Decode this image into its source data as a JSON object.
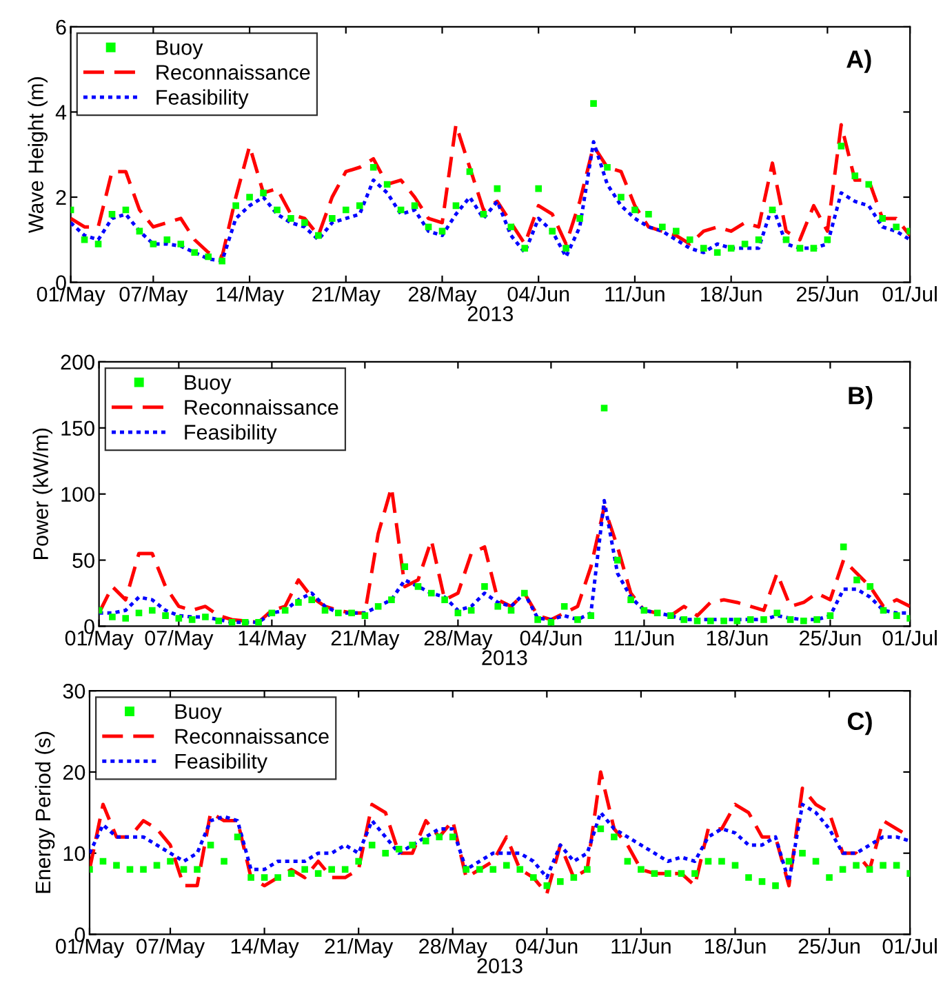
{
  "chart_data": [
    {
      "type": "line",
      "ylabel": "Wave Height (m)",
      "xlabel": "2013",
      "annotations": [
        "A)"
      ],
      "legend": "top left",
      "grid": false,
      "x": [
        "2013-05-01",
        "2013-05-02",
        "2013-05-03",
        "2013-05-04",
        "2013-05-05",
        "2013-05-06",
        "2013-05-07",
        "2013-05-08",
        "2013-05-09",
        "2013-05-10",
        "2013-05-11",
        "2013-05-12",
        "2013-05-13",
        "2013-05-14",
        "2013-05-15",
        "2013-05-16",
        "2013-05-17",
        "2013-05-18",
        "2013-05-19",
        "2013-05-20",
        "2013-05-21",
        "2013-05-22",
        "2013-05-23",
        "2013-05-24",
        "2013-05-25",
        "2013-05-26",
        "2013-05-27",
        "2013-05-28",
        "2013-05-29",
        "2013-05-30",
        "2013-05-31",
        "2013-06-01",
        "2013-06-02",
        "2013-06-03",
        "2013-06-04",
        "2013-06-05",
        "2013-06-06",
        "2013-06-07",
        "2013-06-08",
        "2013-06-09",
        "2013-06-10",
        "2013-06-11",
        "2013-06-12",
        "2013-06-13",
        "2013-06-14",
        "2013-06-15",
        "2013-06-16",
        "2013-06-17",
        "2013-06-18",
        "2013-06-19",
        "2013-06-20",
        "2013-06-21",
        "2013-06-22",
        "2013-06-23",
        "2013-06-24",
        "2013-06-25",
        "2013-06-26",
        "2013-06-27",
        "2013-06-28",
        "2013-06-29",
        "2013-06-30",
        "2013-07-01"
      ],
      "xlim": [
        "2013-05-01",
        "2013-07-01"
      ],
      "xticks": [
        {
          "value": "2013-05-01",
          "label": "01/May"
        },
        {
          "value": "2013-05-07",
          "label": "07/May"
        },
        {
          "value": "2013-05-14",
          "label": "14/May"
        },
        {
          "value": "2013-05-21",
          "label": "21/May"
        },
        {
          "value": "2013-05-28",
          "label": "28/May"
        },
        {
          "value": "2013-06-04",
          "label": "04/Jun"
        },
        {
          "value": "2013-06-11",
          "label": "11/Jun"
        },
        {
          "value": "2013-06-18",
          "label": "18/Jun"
        },
        {
          "value": "2013-06-25",
          "label": "25/Jun"
        },
        {
          "value": "2013-07-01",
          "label": "01/Jul"
        }
      ],
      "ylim": [
        0,
        6
      ],
      "yticks": [
        0,
        2,
        4,
        6
      ],
      "series": [
        {
          "name": "Buoy",
          "type": "scatter",
          "marker": "square",
          "color": "#00ff00",
          "values": [
            1.7,
            1.0,
            0.9,
            1.6,
            1.7,
            1.2,
            0.9,
            1.0,
            0.9,
            0.7,
            0.6,
            0.5,
            1.8,
            2.0,
            2.1,
            1.7,
            1.5,
            1.4,
            1.1,
            1.5,
            1.7,
            1.8,
            2.7,
            2.3,
            1.7,
            1.8,
            1.3,
            1.2,
            1.8,
            2.6,
            1.6,
            2.2,
            1.3,
            0.8,
            2.2,
            1.2,
            0.8,
            1.5,
            4.2,
            2.7,
            2.0,
            1.7,
            1.6,
            1.3,
            1.2,
            1.0,
            0.8,
            0.7,
            0.8,
            0.9,
            1.0,
            1.7,
            1.0,
            0.8,
            0.8,
            1.0,
            3.2,
            2.5,
            2.3,
            1.5,
            1.3,
            1.2
          ]
        },
        {
          "name": "Reconnaissance",
          "line_style": "dashed",
          "color": "#ff0000",
          "values": [
            1.5,
            1.3,
            1.3,
            2.6,
            2.6,
            1.7,
            1.3,
            1.4,
            1.5,
            1.0,
            0.7,
            0.6,
            2.0,
            3.2,
            2.1,
            2.2,
            1.6,
            1.5,
            1.1,
            2.0,
            2.6,
            2.7,
            2.9,
            2.3,
            2.4,
            2.0,
            1.5,
            1.4,
            3.7,
            2.7,
            1.7,
            1.9,
            1.4,
            0.9,
            1.8,
            1.6,
            0.9,
            1.9,
            3.2,
            2.7,
            2.6,
            1.8,
            1.3,
            1.2,
            1.1,
            0.9,
            1.2,
            1.3,
            1.2,
            1.4,
            1.3,
            2.8,
            1.2,
            1.0,
            1.8,
            1.2,
            3.7,
            2.4,
            2.4,
            1.5,
            1.5,
            1.1
          ]
        },
        {
          "name": "Feasibility",
          "line_style": "dotted",
          "color": "#0000ff",
          "values": [
            1.4,
            1.1,
            1.0,
            1.5,
            1.6,
            1.2,
            0.9,
            0.9,
            0.85,
            0.7,
            0.55,
            0.5,
            1.5,
            1.8,
            2.0,
            1.6,
            1.4,
            1.3,
            1.0,
            1.4,
            1.5,
            1.6,
            2.4,
            2.1,
            1.6,
            1.7,
            1.2,
            1.1,
            1.6,
            2.0,
            1.5,
            1.9,
            1.1,
            0.7,
            1.5,
            1.2,
            0.6,
            1.3,
            3.3,
            2.3,
            1.8,
            1.5,
            1.3,
            1.2,
            1.0,
            0.8,
            0.7,
            0.9,
            0.8,
            0.8,
            0.8,
            1.8,
            0.9,
            0.8,
            0.8,
            0.9,
            2.1,
            1.9,
            1.8,
            1.3,
            1.2,
            1.0
          ]
        }
      ]
    },
    {
      "type": "line",
      "ylabel": "Power (kW/m)",
      "xlabel": "2013",
      "annotations": [
        "B)"
      ],
      "legend": "top left",
      "grid": false,
      "x": [
        "2013-05-01",
        "2013-05-02",
        "2013-05-03",
        "2013-05-04",
        "2013-05-05",
        "2013-05-06",
        "2013-05-07",
        "2013-05-08",
        "2013-05-09",
        "2013-05-10",
        "2013-05-11",
        "2013-05-12",
        "2013-05-13",
        "2013-05-14",
        "2013-05-15",
        "2013-05-16",
        "2013-05-17",
        "2013-05-18",
        "2013-05-19",
        "2013-05-20",
        "2013-05-21",
        "2013-05-22",
        "2013-05-23",
        "2013-05-24",
        "2013-05-25",
        "2013-05-26",
        "2013-05-27",
        "2013-05-28",
        "2013-05-29",
        "2013-05-30",
        "2013-05-31",
        "2013-06-01",
        "2013-06-02",
        "2013-06-03",
        "2013-06-04",
        "2013-06-05",
        "2013-06-06",
        "2013-06-07",
        "2013-06-08",
        "2013-06-09",
        "2013-06-10",
        "2013-06-11",
        "2013-06-12",
        "2013-06-13",
        "2013-06-14",
        "2013-06-15",
        "2013-06-16",
        "2013-06-17",
        "2013-06-18",
        "2013-06-19",
        "2013-06-20",
        "2013-06-21",
        "2013-06-22",
        "2013-06-23",
        "2013-06-24",
        "2013-06-25",
        "2013-06-26",
        "2013-06-27",
        "2013-06-28",
        "2013-06-29",
        "2013-06-30",
        "2013-07-01"
      ],
      "xlim": [
        "2013-05-01",
        "2013-07-01"
      ],
      "xticks": [
        {
          "value": "2013-05-01",
          "label": "01/May"
        },
        {
          "value": "2013-05-07",
          "label": "07/May"
        },
        {
          "value": "2013-05-14",
          "label": "14/May"
        },
        {
          "value": "2013-05-21",
          "label": "21/May"
        },
        {
          "value": "2013-05-28",
          "label": "28/May"
        },
        {
          "value": "2013-06-04",
          "label": "04/Jun"
        },
        {
          "value": "2013-06-11",
          "label": "11/Jun"
        },
        {
          "value": "2013-06-18",
          "label": "18/Jun"
        },
        {
          "value": "2013-06-25",
          "label": "25/Jun"
        },
        {
          "value": "2013-07-01",
          "label": "01/Jul"
        }
      ],
      "ylim": [
        0,
        200
      ],
      "yticks": [
        0,
        50,
        100,
        150,
        200
      ],
      "series": [
        {
          "name": "Buoy",
          "type": "scatter",
          "marker": "square",
          "color": "#00ff00",
          "values": [
            12,
            7,
            6,
            10,
            12,
            8,
            6,
            5,
            7,
            4,
            3,
            3,
            3,
            10,
            12,
            18,
            20,
            12,
            10,
            10,
            8,
            15,
            20,
            45,
            30,
            25,
            20,
            10,
            12,
            30,
            15,
            12,
            25,
            5,
            3,
            15,
            5,
            8,
            165,
            50,
            20,
            12,
            10,
            8,
            5,
            4,
            4,
            4,
            4,
            5,
            5,
            10,
            5,
            4,
            5,
            8,
            60,
            35,
            30,
            12,
            8,
            6
          ]
        },
        {
          "name": "Reconnaissance",
          "line_style": "dashed",
          "color": "#ff0000",
          "values": [
            10,
            30,
            20,
            55,
            55,
            30,
            15,
            12,
            15,
            8,
            5,
            4,
            3,
            12,
            15,
            35,
            22,
            15,
            12,
            10,
            10,
            70,
            105,
            30,
            35,
            65,
            20,
            25,
            55,
            60,
            20,
            15,
            25,
            8,
            5,
            10,
            15,
            45,
            90,
            60,
            25,
            12,
            10,
            8,
            15,
            8,
            18,
            20,
            18,
            15,
            12,
            40,
            15,
            18,
            25,
            20,
            50,
            40,
            30,
            15,
            20,
            15
          ]
        },
        {
          "name": "Feasibility",
          "line_style": "dotted",
          "color": "#0000ff",
          "values": [
            10,
            10,
            12,
            22,
            20,
            12,
            8,
            7,
            7,
            5,
            3,
            3,
            3,
            10,
            12,
            20,
            25,
            15,
            10,
            10,
            10,
            15,
            20,
            35,
            30,
            25,
            22,
            12,
            15,
            25,
            18,
            15,
            25,
            6,
            5,
            8,
            5,
            10,
            95,
            40,
            22,
            12,
            10,
            8,
            5,
            5,
            5,
            5,
            5,
            5,
            5,
            8,
            6,
            5,
            5,
            8,
            28,
            28,
            22,
            12,
            10,
            10
          ]
        }
      ]
    },
    {
      "type": "line",
      "ylabel": "Energy Period (s)",
      "xlabel": "2013",
      "annotations": [
        "C)"
      ],
      "legend": "top left",
      "grid": false,
      "x": [
        "2013-05-01",
        "2013-05-02",
        "2013-05-03",
        "2013-05-04",
        "2013-05-05",
        "2013-05-06",
        "2013-05-07",
        "2013-05-08",
        "2013-05-09",
        "2013-05-10",
        "2013-05-11",
        "2013-05-12",
        "2013-05-13",
        "2013-05-14",
        "2013-05-15",
        "2013-05-16",
        "2013-05-17",
        "2013-05-18",
        "2013-05-19",
        "2013-05-20",
        "2013-05-21",
        "2013-05-22",
        "2013-05-23",
        "2013-05-24",
        "2013-05-25",
        "2013-05-26",
        "2013-05-27",
        "2013-05-28",
        "2013-05-29",
        "2013-05-30",
        "2013-05-31",
        "2013-06-01",
        "2013-06-02",
        "2013-06-03",
        "2013-06-04",
        "2013-06-05",
        "2013-06-06",
        "2013-06-07",
        "2013-06-08",
        "2013-06-09",
        "2013-06-10",
        "2013-06-11",
        "2013-06-12",
        "2013-06-13",
        "2013-06-14",
        "2013-06-15",
        "2013-06-16",
        "2013-06-17",
        "2013-06-18",
        "2013-06-19",
        "2013-06-20",
        "2013-06-21",
        "2013-06-22",
        "2013-06-23",
        "2013-06-24",
        "2013-06-25",
        "2013-06-26",
        "2013-06-27",
        "2013-06-28",
        "2013-06-29",
        "2013-06-30",
        "2013-07-01"
      ],
      "xlim": [
        "2013-05-01",
        "2013-07-01"
      ],
      "xticks": [
        {
          "value": "2013-05-01",
          "label": "01/May"
        },
        {
          "value": "2013-05-07",
          "label": "07/May"
        },
        {
          "value": "2013-05-14",
          "label": "14/May"
        },
        {
          "value": "2013-05-21",
          "label": "21/May"
        },
        {
          "value": "2013-05-28",
          "label": "28/May"
        },
        {
          "value": "2013-06-04",
          "label": "04/Jun"
        },
        {
          "value": "2013-06-11",
          "label": "11/Jun"
        },
        {
          "value": "2013-06-18",
          "label": "18/Jun"
        },
        {
          "value": "2013-06-25",
          "label": "25/Jun"
        },
        {
          "value": "2013-07-01",
          "label": "01/Jul"
        }
      ],
      "ylim": [
        0,
        30
      ],
      "yticks": [
        0,
        10,
        20,
        30
      ],
      "series": [
        {
          "name": "Buoy",
          "type": "scatter",
          "marker": "square",
          "color": "#00ff00",
          "values": [
            8,
            9,
            8.5,
            8,
            8,
            8.5,
            9,
            8,
            8,
            11,
            9,
            12,
            7,
            7,
            7,
            7.5,
            8,
            7.5,
            8,
            8,
            9,
            11,
            10,
            10.5,
            11,
            11.5,
            12,
            12,
            8,
            8,
            8,
            8.5,
            8,
            7,
            6,
            6.5,
            7,
            8,
            13,
            12,
            9,
            8,
            7.5,
            7.5,
            7.5,
            7.5,
            9,
            9,
            8.5,
            7,
            6.5,
            6,
            9,
            10,
            9,
            7,
            8,
            8.5,
            8,
            8.5,
            8.5,
            7.5
          ]
        },
        {
          "name": "Reconnaissance",
          "line_style": "dashed",
          "color": "#ff0000",
          "values": [
            8,
            16,
            12,
            12,
            14,
            13,
            11,
            6,
            6,
            15,
            14,
            14,
            7,
            6,
            7,
            8,
            7,
            9,
            7,
            7,
            8,
            16,
            15,
            10,
            10,
            14,
            12,
            14,
            7,
            8,
            9,
            12,
            8,
            7,
            5,
            11,
            7,
            8,
            20,
            13,
            11,
            8,
            7.5,
            7.5,
            7.5,
            6,
            13,
            13,
            16,
            15,
            12,
            12,
            6,
            18,
            16,
            15,
            10,
            10,
            8,
            14,
            13,
            12
          ]
        },
        {
          "name": "Feasibility",
          "line_style": "dotted",
          "color": "#0000ff",
          "values": [
            10,
            13.5,
            12,
            12,
            12,
            11,
            10,
            9,
            10,
            14,
            14.5,
            14,
            8,
            8,
            9,
            9,
            9,
            10,
            10,
            11,
            10,
            14,
            12,
            10,
            11,
            12,
            13,
            13,
            8,
            9,
            10,
            10,
            10,
            9,
            7,
            11,
            9,
            10,
            15,
            13,
            12,
            11,
            10,
            9,
            9.5,
            9,
            12,
            13,
            12.5,
            11,
            11,
            12,
            6.5,
            16,
            15,
            13,
            10,
            10,
            11,
            12,
            12,
            11.5
          ]
        }
      ]
    }
  ]
}
